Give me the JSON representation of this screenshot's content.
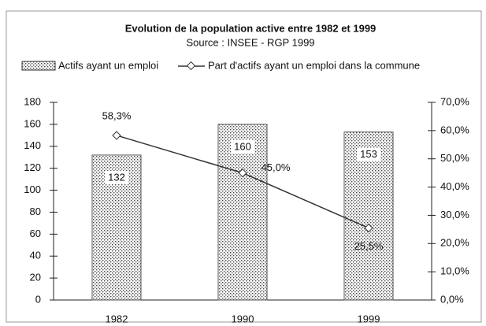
{
  "chart_data": {
    "type": "bar-line",
    "title": "Evolution de la population active entre 1982 et 1999",
    "subtitle": "Source : INSEE - RGP 1999",
    "categories": [
      "1982",
      "1990",
      "1999"
    ],
    "series": [
      {
        "name": "Actifs ayant un emploi",
        "type": "bar",
        "color": "#555555",
        "values": [
          132,
          160,
          153
        ]
      },
      {
        "name": "Part d'actifs ayant un emploi dans la commune",
        "type": "line",
        "axis": "y2",
        "color": "#333333",
        "values": [
          58.3,
          45.0,
          25.5
        ],
        "value_labels": [
          "58,3%",
          "45,0%",
          "25,5%"
        ]
      }
    ],
    "ylim": [
      0,
      180
    ],
    "yticks": [
      0,
      20,
      40,
      60,
      80,
      100,
      120,
      140,
      160,
      180
    ],
    "y2lim": [
      0,
      70
    ],
    "y2ticks": [
      {
        "value": 0,
        "label": "0,0%"
      },
      {
        "value": 10,
        "label": "10,0%"
      },
      {
        "value": 20,
        "label": "20,0%"
      },
      {
        "value": 30,
        "label": "30,0%"
      },
      {
        "value": 40,
        "label": "40,0%"
      },
      {
        "value": 50,
        "label": "50,0%"
      },
      {
        "value": 60,
        "label": "60,0%"
      },
      {
        "value": 70,
        "label": "70,0%"
      }
    ],
    "grid": false
  }
}
